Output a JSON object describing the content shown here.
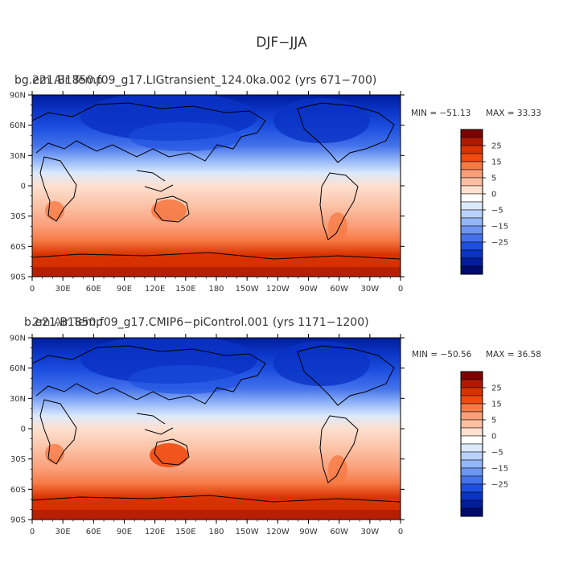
{
  "figure": {
    "title": "DJF−JJA"
  },
  "panels": [
    {
      "overlay_label": "2m Air Temp",
      "case_name": "bg.e21.B1850.f09_g17.LIGtransient_124.0ka.002 (yrs 671−700)",
      "min_label": "MIN = −51.13",
      "max_label": "MAX =  33.33",
      "min_value": -51.13,
      "max_value": 33.33
    },
    {
      "overlay_label": "2m Air Temp",
      "case_name": "b.e21.B1850.f09_g17.CMIP6−piControl.001 (yrs 1171−1200)",
      "min_label": "MIN = −50.56",
      "max_label": "MAX =  36.58",
      "min_value": -50.56,
      "max_value": 36.58
    }
  ],
  "map": {
    "lat_ticks": [
      "90N",
      "60N",
      "30N",
      "0",
      "30S",
      "60S",
      "90S"
    ],
    "lon_ticks": [
      "0",
      "30E",
      "60E",
      "90E",
      "120E",
      "150E",
      "180",
      "150W",
      "120W",
      "90W",
      "60W",
      "30W",
      "0"
    ]
  },
  "colorbar": {
    "labels": [
      "25",
      "15",
      "5",
      "0",
      "−5",
      "−15",
      "−25"
    ],
    "colors": [
      "#7f0000",
      "#b01a00",
      "#d93200",
      "#f04a10",
      "#f77a45",
      "#fa9f7a",
      "#fbbfa2",
      "#fde0cf",
      "#ffffff",
      "#dbe9fc",
      "#b8d2fb",
      "#93b6f8",
      "#6d96f2",
      "#4472ea",
      "#1d4fe0",
      "#0a33c4",
      "#001d9b",
      "#000b6e"
    ]
  }
}
